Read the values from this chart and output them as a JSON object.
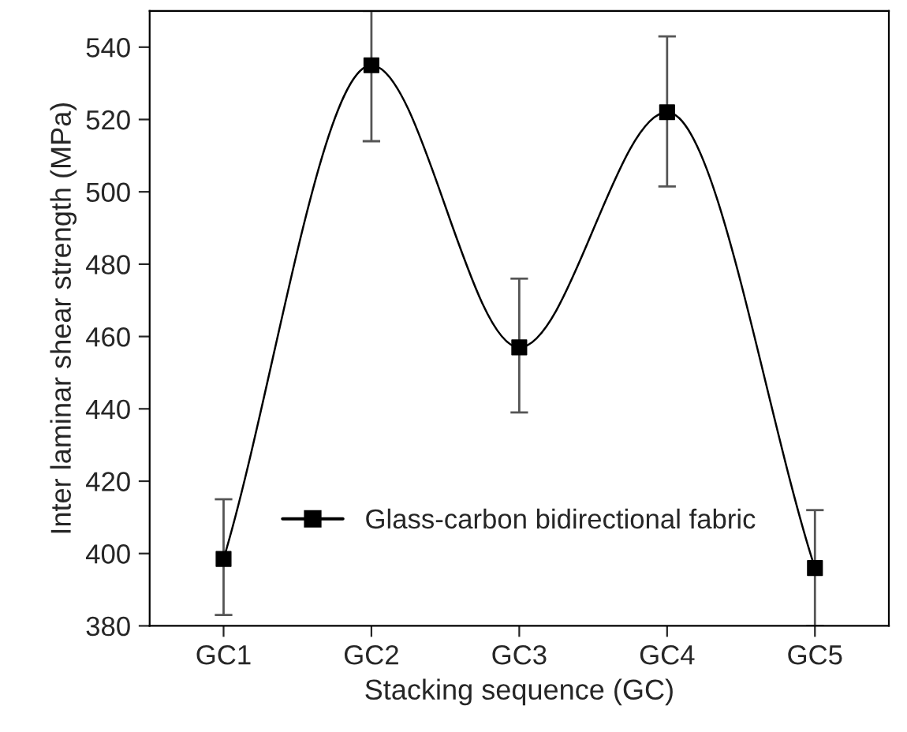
{
  "chart_data": {
    "type": "line",
    "xlabel": "Stacking sequence (GC)",
    "ylabel": "Inter laminar shear strength (MPa)",
    "categories": [
      "GC1",
      "GC2",
      "GC3",
      "GC4",
      "GC5"
    ],
    "series": [
      {
        "name": "Glass-carbon bidirectional fabric",
        "color": "#000000",
        "values": [
          398.5,
          535,
          457,
          522,
          396
        ],
        "errors": [
          [
            383,
            415
          ],
          [
            514,
            550
          ],
          [
            439,
            476
          ],
          [
            501.5,
            543
          ],
          [
            380,
            412
          ]
        ]
      }
    ],
    "ylim": [
      380,
      550
    ],
    "yticks": [
      380,
      400,
      420,
      440,
      460,
      480,
      500,
      520,
      540
    ],
    "marker": "square",
    "line_style": "solid",
    "grid": false,
    "legend": "bottom"
  }
}
